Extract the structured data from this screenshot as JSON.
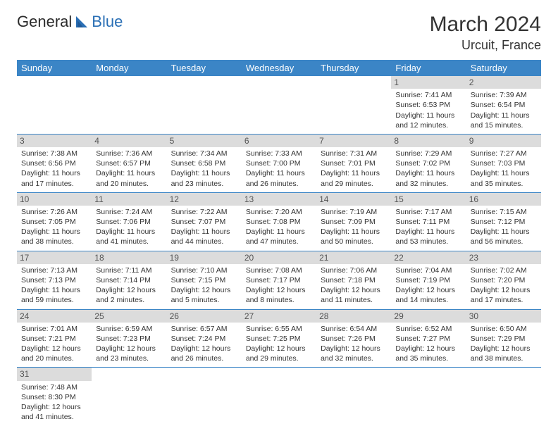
{
  "logo": {
    "text1": "General",
    "text2": "Blue"
  },
  "title": "March 2024",
  "location": "Urcuit, France",
  "colors": {
    "header_bg": "#3b85c6",
    "header_fg": "#ffffff",
    "daynum_bg": "#dcdcdc",
    "daynum_fg": "#555555",
    "row_divider": "#3b85c6",
    "logo_blue": "#2a6fb5"
  },
  "weekdays": [
    "Sunday",
    "Monday",
    "Tuesday",
    "Wednesday",
    "Thursday",
    "Friday",
    "Saturday"
  ],
  "weeks": [
    [
      null,
      null,
      null,
      null,
      null,
      {
        "n": "1",
        "sr": "Sunrise: 7:41 AM",
        "ss": "Sunset: 6:53 PM",
        "d1": "Daylight: 11 hours",
        "d2": "and 12 minutes."
      },
      {
        "n": "2",
        "sr": "Sunrise: 7:39 AM",
        "ss": "Sunset: 6:54 PM",
        "d1": "Daylight: 11 hours",
        "d2": "and 15 minutes."
      }
    ],
    [
      {
        "n": "3",
        "sr": "Sunrise: 7:38 AM",
        "ss": "Sunset: 6:56 PM",
        "d1": "Daylight: 11 hours",
        "d2": "and 17 minutes."
      },
      {
        "n": "4",
        "sr": "Sunrise: 7:36 AM",
        "ss": "Sunset: 6:57 PM",
        "d1": "Daylight: 11 hours",
        "d2": "and 20 minutes."
      },
      {
        "n": "5",
        "sr": "Sunrise: 7:34 AM",
        "ss": "Sunset: 6:58 PM",
        "d1": "Daylight: 11 hours",
        "d2": "and 23 minutes."
      },
      {
        "n": "6",
        "sr": "Sunrise: 7:33 AM",
        "ss": "Sunset: 7:00 PM",
        "d1": "Daylight: 11 hours",
        "d2": "and 26 minutes."
      },
      {
        "n": "7",
        "sr": "Sunrise: 7:31 AM",
        "ss": "Sunset: 7:01 PM",
        "d1": "Daylight: 11 hours",
        "d2": "and 29 minutes."
      },
      {
        "n": "8",
        "sr": "Sunrise: 7:29 AM",
        "ss": "Sunset: 7:02 PM",
        "d1": "Daylight: 11 hours",
        "d2": "and 32 minutes."
      },
      {
        "n": "9",
        "sr": "Sunrise: 7:27 AM",
        "ss": "Sunset: 7:03 PM",
        "d1": "Daylight: 11 hours",
        "d2": "and 35 minutes."
      }
    ],
    [
      {
        "n": "10",
        "sr": "Sunrise: 7:26 AM",
        "ss": "Sunset: 7:05 PM",
        "d1": "Daylight: 11 hours",
        "d2": "and 38 minutes."
      },
      {
        "n": "11",
        "sr": "Sunrise: 7:24 AM",
        "ss": "Sunset: 7:06 PM",
        "d1": "Daylight: 11 hours",
        "d2": "and 41 minutes."
      },
      {
        "n": "12",
        "sr": "Sunrise: 7:22 AM",
        "ss": "Sunset: 7:07 PM",
        "d1": "Daylight: 11 hours",
        "d2": "and 44 minutes."
      },
      {
        "n": "13",
        "sr": "Sunrise: 7:20 AM",
        "ss": "Sunset: 7:08 PM",
        "d1": "Daylight: 11 hours",
        "d2": "and 47 minutes."
      },
      {
        "n": "14",
        "sr": "Sunrise: 7:19 AM",
        "ss": "Sunset: 7:09 PM",
        "d1": "Daylight: 11 hours",
        "d2": "and 50 minutes."
      },
      {
        "n": "15",
        "sr": "Sunrise: 7:17 AM",
        "ss": "Sunset: 7:11 PM",
        "d1": "Daylight: 11 hours",
        "d2": "and 53 minutes."
      },
      {
        "n": "16",
        "sr": "Sunrise: 7:15 AM",
        "ss": "Sunset: 7:12 PM",
        "d1": "Daylight: 11 hours",
        "d2": "and 56 minutes."
      }
    ],
    [
      {
        "n": "17",
        "sr": "Sunrise: 7:13 AM",
        "ss": "Sunset: 7:13 PM",
        "d1": "Daylight: 11 hours",
        "d2": "and 59 minutes."
      },
      {
        "n": "18",
        "sr": "Sunrise: 7:11 AM",
        "ss": "Sunset: 7:14 PM",
        "d1": "Daylight: 12 hours",
        "d2": "and 2 minutes."
      },
      {
        "n": "19",
        "sr": "Sunrise: 7:10 AM",
        "ss": "Sunset: 7:15 PM",
        "d1": "Daylight: 12 hours",
        "d2": "and 5 minutes."
      },
      {
        "n": "20",
        "sr": "Sunrise: 7:08 AM",
        "ss": "Sunset: 7:17 PM",
        "d1": "Daylight: 12 hours",
        "d2": "and 8 minutes."
      },
      {
        "n": "21",
        "sr": "Sunrise: 7:06 AM",
        "ss": "Sunset: 7:18 PM",
        "d1": "Daylight: 12 hours",
        "d2": "and 11 minutes."
      },
      {
        "n": "22",
        "sr": "Sunrise: 7:04 AM",
        "ss": "Sunset: 7:19 PM",
        "d1": "Daylight: 12 hours",
        "d2": "and 14 minutes."
      },
      {
        "n": "23",
        "sr": "Sunrise: 7:02 AM",
        "ss": "Sunset: 7:20 PM",
        "d1": "Daylight: 12 hours",
        "d2": "and 17 minutes."
      }
    ],
    [
      {
        "n": "24",
        "sr": "Sunrise: 7:01 AM",
        "ss": "Sunset: 7:21 PM",
        "d1": "Daylight: 12 hours",
        "d2": "and 20 minutes."
      },
      {
        "n": "25",
        "sr": "Sunrise: 6:59 AM",
        "ss": "Sunset: 7:23 PM",
        "d1": "Daylight: 12 hours",
        "d2": "and 23 minutes."
      },
      {
        "n": "26",
        "sr": "Sunrise: 6:57 AM",
        "ss": "Sunset: 7:24 PM",
        "d1": "Daylight: 12 hours",
        "d2": "and 26 minutes."
      },
      {
        "n": "27",
        "sr": "Sunrise: 6:55 AM",
        "ss": "Sunset: 7:25 PM",
        "d1": "Daylight: 12 hours",
        "d2": "and 29 minutes."
      },
      {
        "n": "28",
        "sr": "Sunrise: 6:54 AM",
        "ss": "Sunset: 7:26 PM",
        "d1": "Daylight: 12 hours",
        "d2": "and 32 minutes."
      },
      {
        "n": "29",
        "sr": "Sunrise: 6:52 AM",
        "ss": "Sunset: 7:27 PM",
        "d1": "Daylight: 12 hours",
        "d2": "and 35 minutes."
      },
      {
        "n": "30",
        "sr": "Sunrise: 6:50 AM",
        "ss": "Sunset: 7:29 PM",
        "d1": "Daylight: 12 hours",
        "d2": "and 38 minutes."
      }
    ],
    [
      {
        "n": "31",
        "sr": "Sunrise: 7:48 AM",
        "ss": "Sunset: 8:30 PM",
        "d1": "Daylight: 12 hours",
        "d2": "and 41 minutes."
      },
      null,
      null,
      null,
      null,
      null,
      null
    ]
  ]
}
